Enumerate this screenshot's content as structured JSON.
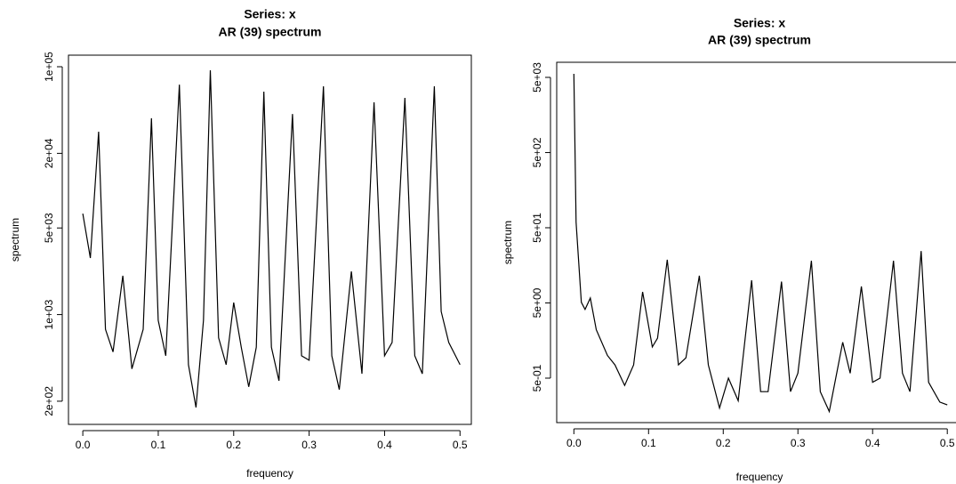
{
  "chart_data": [
    {
      "type": "line",
      "title": "Series: x",
      "subtitle": "AR (39) spectrum",
      "xlabel": "frequency",
      "ylabel": "spectrum",
      "log_y": true,
      "color": "#000000",
      "x": [
        0.0,
        0.01,
        0.021,
        0.03,
        0.04,
        0.053,
        0.065,
        0.08,
        0.091,
        0.1,
        0.11,
        0.128,
        0.14,
        0.15,
        0.16,
        0.169,
        0.18,
        0.19,
        0.2,
        0.21,
        0.22,
        0.23,
        0.24,
        0.25,
        0.26,
        0.278,
        0.29,
        0.3,
        0.319,
        0.33,
        0.34,
        0.356,
        0.37,
        0.386,
        0.4,
        0.41,
        0.427,
        0.44,
        0.45,
        0.466,
        0.475,
        0.485,
        0.5
      ],
      "values": [
        6530,
        2860,
        29900,
        760,
        500,
        2060,
        365,
        760,
        38400,
        900,
        465,
        71800,
        394,
        178,
        900,
        93600,
        650,
        394,
        1250,
        545,
        261,
        545,
        63000,
        545,
        292,
        41600,
        465,
        428,
        69500,
        465,
        248,
        2230,
        333,
        51600,
        465,
        596,
        56100,
        465,
        333,
        69500,
        1060,
        596,
        394
      ],
      "xlim": [
        -0.019,
        0.515
      ],
      "ylim": [
        130,
        124000
      ],
      "xticks": [
        {
          "value": 0,
          "label": "0.0"
        },
        0.1,
        0.2,
        0.3,
        0.4,
        0.5
      ],
      "yticks": [
        {
          "value": 200,
          "label": "2e+02"
        },
        {
          "value": 1000,
          "label": "1e+03"
        },
        {
          "value": 5000,
          "label": "5e+03"
        },
        {
          "value": 20000,
          "label": "2e+04"
        },
        {
          "value": 100000,
          "label": "1e+05"
        }
      ]
    },
    {
      "type": "line",
      "title": "Series: x",
      "subtitle": "AR (39) spectrum",
      "xlabel": "frequency",
      "ylabel": "spectrum",
      "log_y": true,
      "color": "#000000",
      "x": [
        0.0,
        0.003,
        0.01,
        0.015,
        0.022,
        0.03,
        0.045,
        0.055,
        0.068,
        0.08,
        0.092,
        0.105,
        0.112,
        0.125,
        0.14,
        0.15,
        0.168,
        0.18,
        0.195,
        0.207,
        0.22,
        0.238,
        0.25,
        0.26,
        0.278,
        0.29,
        0.3,
        0.318,
        0.33,
        0.342,
        0.36,
        0.37,
        0.385,
        0.4,
        0.41,
        0.428,
        0.44,
        0.45,
        0.465,
        0.475,
        0.49,
        0.5
      ],
      "values": [
        5570,
        59,
        5.1,
        4.1,
        5.8,
        2.2,
        1.0,
        0.75,
        0.4,
        0.75,
        7.0,
        1.3,
        1.7,
        18.8,
        0.75,
        0.93,
        11.5,
        0.75,
        0.2,
        0.5,
        0.25,
        10,
        0.33,
        0.33,
        9.6,
        0.33,
        0.58,
        18.2,
        0.33,
        0.18,
        1.5,
        0.58,
        8.3,
        0.44,
        0.5,
        18.2,
        0.58,
        0.33,
        24.5,
        0.44,
        0.24,
        0.22
      ],
      "xlim": [
        -0.023,
        0.52
      ],
      "ylim": [
        0.128,
        7940
      ],
      "xticks": [
        {
          "value": 0,
          "label": "0.0"
        },
        0.1,
        0.2,
        0.3,
        0.4,
        0.5
      ],
      "yticks": [
        {
          "value": 0.5,
          "label": "5e-01"
        },
        {
          "value": 5,
          "label": "5e+00"
        },
        {
          "value": 50,
          "label": "5e+01"
        },
        {
          "value": 500,
          "label": "5e+02"
        },
        {
          "value": 5000,
          "label": "5e+03"
        }
      ]
    }
  ]
}
